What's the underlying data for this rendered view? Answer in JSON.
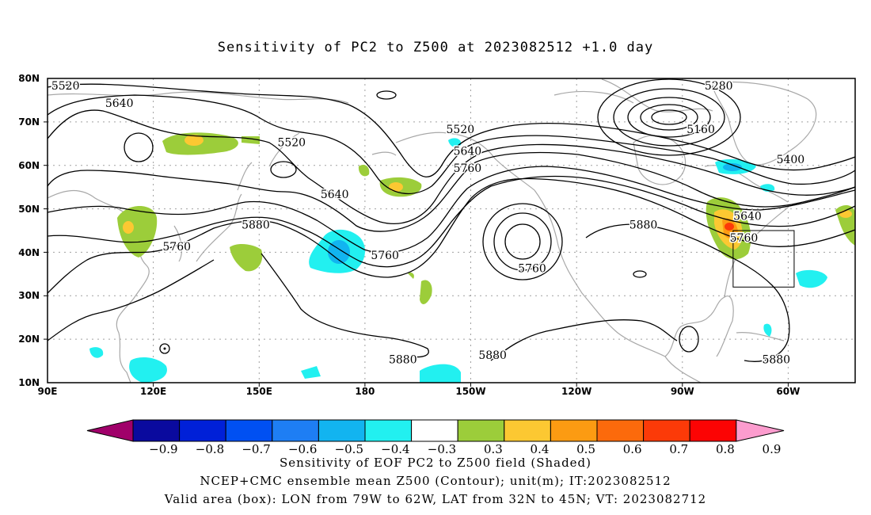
{
  "title": "Sensitivity of PC2 to Z500 at 2023082512 +1.0 day",
  "map": {
    "lon_labels": [
      "90E",
      "120E",
      "150E",
      "180",
      "150W",
      "120W",
      "90W",
      "60W"
    ],
    "lat_labels": [
      "80N",
      "70N",
      "60N",
      "50N",
      "40N",
      "30N",
      "20N",
      "10N"
    ],
    "contour_labels": [
      {
        "text": "5520",
        "lon": 95,
        "lat": 78
      },
      {
        "text": "5640",
        "lon": 110,
        "lat": 74
      },
      {
        "text": "5520",
        "lon": 158,
        "lat": 65
      },
      {
        "text": "5640",
        "lon": 170,
        "lat": 53
      },
      {
        "text": "5880",
        "lon": 148,
        "lat": 46
      },
      {
        "text": "5760",
        "lon": 126,
        "lat": 41
      },
      {
        "text": "5760",
        "lon": 184,
        "lat": 39
      },
      {
        "text": "5520",
        "lon": 205,
        "lat": 68
      },
      {
        "text": "5640",
        "lon": 207,
        "lat": 63
      },
      {
        "text": "5760",
        "lon": 207,
        "lat": 59
      },
      {
        "text": "5760",
        "lon": 225,
        "lat": 36
      },
      {
        "text": "5880",
        "lon": 256,
        "lat": 46
      },
      {
        "text": "5880",
        "lon": 189,
        "lat": 15
      },
      {
        "text": "5880",
        "lon": 214,
        "lat": 16
      },
      {
        "text": "5280",
        "lon": 277,
        "lat": 78
      },
      {
        "text": "5160",
        "lon": 272,
        "lat": 68
      },
      {
        "text": "5400",
        "lon": 297,
        "lat": 61
      },
      {
        "text": "5640",
        "lon": 285,
        "lat": 48
      },
      {
        "text": "5760",
        "lon": 284,
        "lat": 43
      },
      {
        "text": "5880",
        "lon": 293,
        "lat": 15
      }
    ],
    "valid_box": {
      "lon_west": 281,
      "lon_east": 298,
      "lat_south": 32,
      "lat_north": 45
    }
  },
  "colorbar": {
    "labels": [
      "-0.9",
      "-0.8",
      "-0.7",
      "-0.6",
      "-0.5",
      "-0.4",
      "-0.3",
      "0.3",
      "0.4",
      "0.5",
      "0.6",
      "0.7",
      "0.8",
      "0.9"
    ],
    "colors": [
      "#a0006a",
      "#0a0a9e",
      "#0020d8",
      "#0050f2",
      "#1e7ef4",
      "#12b4f0",
      "#22f0f0",
      "#ffffff",
      "#9ccd3a",
      "#fcc832",
      "#fc9b12",
      "#fc6a0c",
      "#fc3a08",
      "#fc0404",
      "#fc9cce"
    ]
  },
  "caption_line1": "Sensitivity of EOF PC2 to Z500 field (Shaded)",
  "caption_line2": "NCEP+CMC ensemble mean Z500 (Contour); unit(m); IT:2023082512",
  "caption_line3": "Valid area (box): LON from 79W to 62W, LAT from 32N to 45N; VT: 2023082712"
}
